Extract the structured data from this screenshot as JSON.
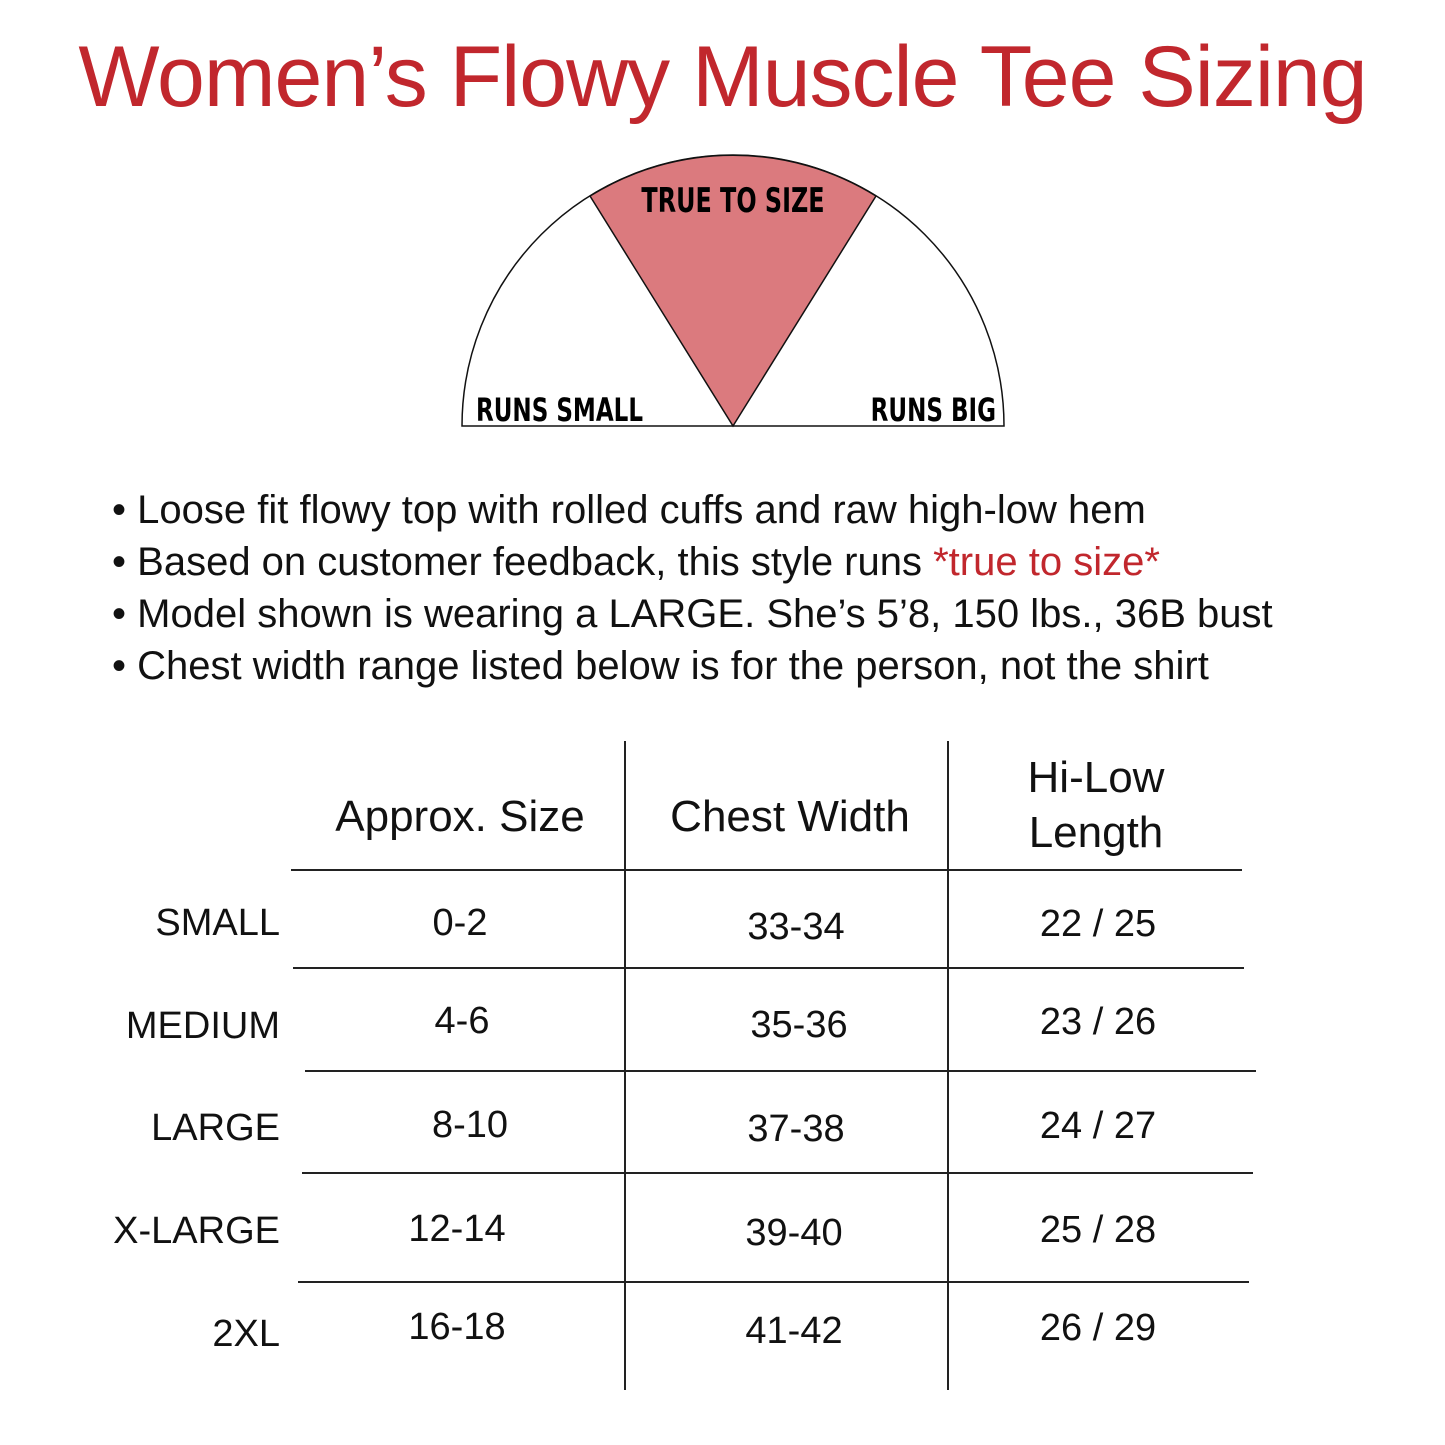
{
  "title": "Women’s Flowy Muscle Tee Sizing",
  "fit_gauge": {
    "left_label": "RUNS SMALL",
    "center_label": "TRUE TO SIZE",
    "right_label": "RUNS BIG",
    "selected": "TRUE TO SIZE",
    "highlight_color": "#db7a7e"
  },
  "bullets": [
    {
      "text": "Loose fit flowy top with rolled cuffs and raw high-low hem",
      "highlight": ""
    },
    {
      "text": "Based on customer feedback, this style runs ",
      "highlight": "*true to size*"
    },
    {
      "text": "Model shown is wearing a LARGE. She’s 5’8, 150 lbs., 36B bust",
      "highlight": ""
    },
    {
      "text": "Chest width range listed below is for the person, not the shirt",
      "highlight": ""
    }
  ],
  "bullet_char": "•",
  "table": {
    "headers": [
      "Approx. Size",
      "Chest Width",
      "Hi-Low",
      "Length"
    ],
    "rows": [
      {
        "label": "SMALL",
        "size": "0-2",
        "chest": "33-34",
        "length": "22 / 25"
      },
      {
        "label": "MEDIUM",
        "size": "4-6",
        "chest": "35-36",
        "length": "23 / 26"
      },
      {
        "label": "LARGE",
        "size": "8-10",
        "chest": "37-38",
        "length": "24 / 27"
      },
      {
        "label": "X-LARGE",
        "size": "12-14",
        "chest": "39-40",
        "length": "25 / 28"
      },
      {
        "label": "2XL",
        "size": "16-18",
        "chest": "41-42",
        "length": "26 / 29"
      }
    ]
  },
  "colors": {
    "accent": "#c1272d"
  }
}
